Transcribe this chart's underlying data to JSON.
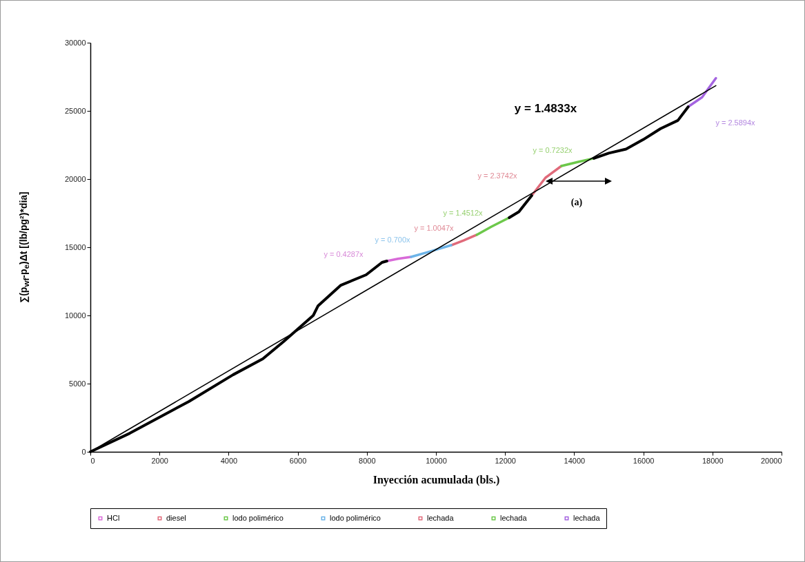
{
  "chart_data": {
    "type": "line",
    "xlabel": "Inyección acumulada (bls.)",
    "ylabel": "∑(p$_{wf}$-p$_{e}$)Δt [(lb/pg²)*dia]",
    "xlim": [
      0,
      20000
    ],
    "xticks": [
      0,
      2000,
      4000,
      6000,
      8000,
      10000,
      12000,
      14000,
      16000,
      18000,
      20000
    ],
    "ylim": [
      0,
      30000
    ],
    "yticks": [
      0,
      5000,
      10000,
      15000,
      20000,
      25000,
      30000
    ],
    "legend": "bottom",
    "marker": "none",
    "grid": false,
    "series": [
      {
        "name": "HCl",
        "color": "#d86ad8",
        "x": [
          8580,
          8900,
          9280
        ],
        "values": [
          13990,
          14150,
          14290
        ]
      },
      {
        "name": "diesel",
        "color": "#e06a7a",
        "x": [
          10440,
          10800,
          11180
        ],
        "values": [
          15150,
          15500,
          15910
        ]
      },
      {
        "name": "lodo polimérico",
        "color": "#6cc84a",
        "x": [
          11180,
          11600,
          12120
        ],
        "values": [
          15910,
          16500,
          17170
        ]
      },
      {
        "name": "lodo polimérico",
        "color": "#6cb4e8",
        "x": [
          9280,
          9780,
          10440
        ],
        "values": [
          14290,
          14650,
          15150
        ]
      },
      {
        "name": "lechada",
        "color": "#e06a7a",
        "x": [
          12770,
          13170,
          13630
        ],
        "values": [
          18790,
          20100,
          20960
        ]
      },
      {
        "name": "lechada",
        "color": "#6cc84a",
        "x": [
          13630,
          14100,
          14570
        ],
        "values": [
          20960,
          21250,
          21520
        ]
      },
      {
        "name": "lechada",
        "color": "#a464e0",
        "x": [
          17300,
          17700,
          18100
        ],
        "values": [
          25300,
          26000,
          27400
        ]
      },
      {
        "color": "#000000",
        "x": [
          0,
          1140,
          2850,
          4130,
          4990,
          5590,
          6450,
          6590,
          7250,
          7980,
          8440,
          8580
        ],
        "values": [
          0,
          1360,
          3690,
          5650,
          6820,
          8080,
          10000,
          10710,
          12220,
          12980,
          13890,
          13990
        ]
      },
      {
        "color": "#000000",
        "x": [
          12120,
          12400,
          12770
        ],
        "values": [
          17170,
          17600,
          18790
        ]
      },
      {
        "color": "#000000",
        "x": [
          14570,
          15000,
          15500,
          16000,
          16500,
          17000,
          17300
        ],
        "values": [
          21520,
          21900,
          22200,
          22900,
          23700,
          24300,
          25300
        ]
      },
      {
        "color": "#000000",
        "x": [
          0,
          18100
        ],
        "values": [
          0,
          26850
        ]
      }
    ],
    "annotations": [
      "y = 1.4833x",
      "y = 0.4287x",
      "y = 0.700x",
      "y = 1.0047x",
      "y = 1.4512x",
      "y = 2.3742x",
      "y = 0.7232x",
      "y = 2.5894x",
      "(a)"
    ]
  }
}
